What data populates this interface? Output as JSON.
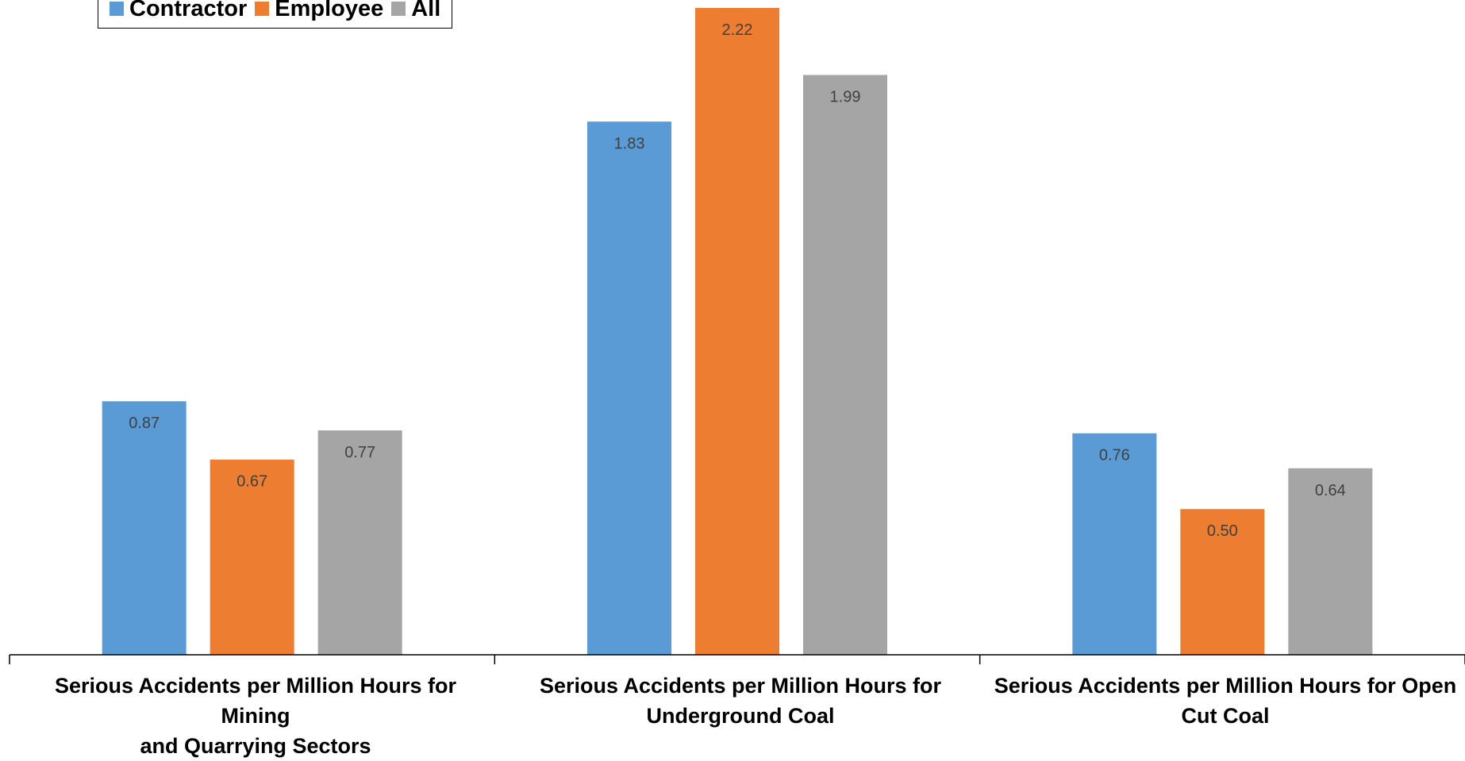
{
  "chart_data": {
    "type": "bar",
    "categories": [
      "Serious Accidents per Million Hours for Mining\nand Quarrying Sectors",
      "Serious Accidents per Million Hours for\nUnderground Coal",
      "Serious Accidents per Million Hours for Open\nCut Coal"
    ],
    "series": [
      {
        "name": "Contractor",
        "values": [
          0.87,
          1.83,
          0.76
        ],
        "labels": [
          "0.87",
          "1.83",
          "0.76"
        ],
        "color": "#5b9bd5"
      },
      {
        "name": "Employee",
        "values": [
          0.67,
          2.22,
          0.5
        ],
        "labels": [
          "0.67",
          "2.22",
          "0.50"
        ],
        "color": "#ed7d31"
      },
      {
        "name": "All",
        "values": [
          0.77,
          1.99,
          0.64
        ],
        "labels": [
          "0.77",
          "1.99",
          "0.64"
        ],
        "color": "#a5a5a5"
      }
    ],
    "ylim": [
      0,
      2.25
    ],
    "legend_position": "top-left",
    "grid": false
  }
}
